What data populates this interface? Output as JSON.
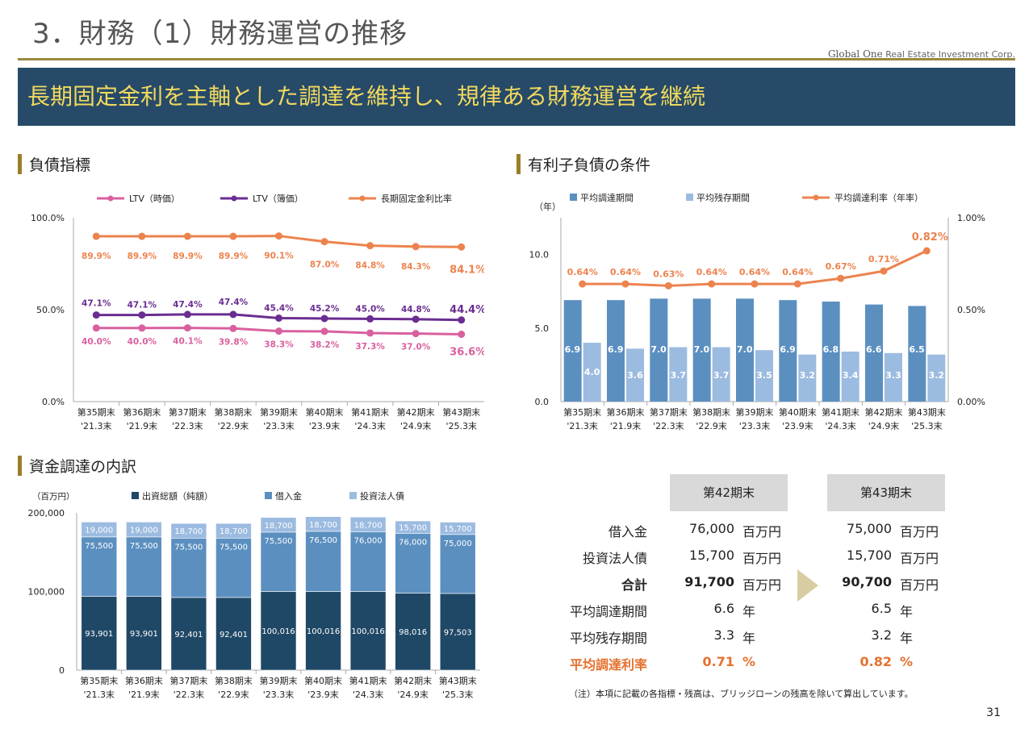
{
  "title": "3．財務（1）財務運営の推移",
  "logo": {
    "brand": "Global One",
    "tagline": "Real Estate Investment Corp."
  },
  "banner": "長期固定金利を主軸とした調達を維持し、規律ある財務運営を継続",
  "sections": {
    "debt": "負債指標",
    "conditions": "有利子負債の条件",
    "funding": "資金調達の内訳"
  },
  "periods": [
    "第35期末",
    "第36期末",
    "第37期末",
    "第38期末",
    "第39期末",
    "第40期末",
    "第41期末",
    "第42期末",
    "第43期末"
  ],
  "period_dates": [
    "'21.3末",
    "'21.9末",
    "'22.3末",
    "'22.9末",
    "'23.3末",
    "'23.9末",
    "'24.3末",
    "'24.9末",
    "'25.3末"
  ],
  "chart_data": [
    {
      "type": "line",
      "yticks": [
        "100.0%",
        "50.0%",
        "0.0%"
      ],
      "ylim": [
        0,
        100
      ],
      "series": [
        {
          "name": "LTV（時価）",
          "color": "#d9609f",
          "values": [
            40.0,
            40.0,
            40.1,
            39.8,
            38.3,
            38.2,
            37.3,
            37.0,
            36.6
          ],
          "labels": [
            "40.0%",
            "40.0%",
            "40.1%",
            "39.8%",
            "38.3%",
            "38.2%",
            "37.3%",
            "37.0%",
            "36.6%"
          ]
        },
        {
          "name": "LTV（簿価）",
          "color": "#6a2d91",
          "values": [
            47.1,
            47.1,
            47.4,
            47.4,
            45.4,
            45.2,
            45.0,
            44.8,
            44.4
          ],
          "labels": [
            "47.1%",
            "47.1%",
            "47.4%",
            "47.4%",
            "45.4%",
            "45.2%",
            "45.0%",
            "44.8%",
            "44.4%"
          ]
        },
        {
          "name": "長期固定金利比率",
          "color": "#ec834e",
          "values": [
            89.9,
            89.9,
            89.9,
            89.9,
            90.1,
            87.0,
            84.8,
            84.3,
            84.1
          ],
          "labels": [
            "89.9%",
            "89.9%",
            "89.9%",
            "89.9%",
            "90.1%",
            "87.0%",
            "84.8%",
            "84.3%",
            "84.1%"
          ]
        }
      ]
    },
    {
      "type": "bar",
      "unit_label": "（年）",
      "yticks_left": [
        "10.0",
        "5.0",
        "0.0"
      ],
      "yticks_right": [
        "1.00%",
        "0.50%",
        "0.00%"
      ],
      "ylim": [
        0,
        12.5
      ],
      "ylim_right": [
        0,
        1.0
      ],
      "series": [
        {
          "name": "平均調達期間",
          "color": "#5b8fc0",
          "values": [
            6.9,
            6.9,
            7.0,
            7.0,
            7.0,
            6.9,
            6.8,
            6.6,
            6.5
          ],
          "labels": [
            "6.9",
            "6.9",
            "7.0",
            "7.0",
            "7.0",
            "6.9",
            "6.8",
            "6.6",
            "6.5"
          ]
        },
        {
          "name": "平均残存期間",
          "color": "#9cbbe0",
          "values": [
            4.0,
            3.6,
            3.7,
            3.7,
            3.5,
            3.2,
            3.4,
            3.3,
            3.2
          ],
          "labels": [
            "4.0",
            "3.6",
            "3.7",
            "3.7",
            "3.5",
            "3.2",
            "3.4",
            "3.3",
            "3.2"
          ]
        },
        {
          "name": "平均調達利率（年率）",
          "color": "#ec834e",
          "values": [
            0.64,
            0.64,
            0.63,
            0.64,
            0.64,
            0.64,
            0.67,
            0.71,
            0.82
          ],
          "labels": [
            "0.64%",
            "0.64%",
            "0.63%",
            "0.64%",
            "0.64%",
            "0.64%",
            "0.67%",
            "0.71%",
            "0.82%"
          ]
        }
      ]
    },
    {
      "type": "bar",
      "stacked": true,
      "unit_label": "（百万円）",
      "yticks": [
        "200,000",
        "100,000",
        "0"
      ],
      "ylim": [
        0,
        200000
      ],
      "series": [
        {
          "name": "出資総額（純額）",
          "color": "#1f4866",
          "values": [
            93901,
            93901,
            92401,
            92401,
            100016,
            100016,
            100016,
            98016,
            97503
          ],
          "labels": [
            "93,901",
            "93,901",
            "92,401",
            "92,401",
            "100,016",
            "100,016",
            "100,016",
            "98,016",
            "97,503"
          ]
        },
        {
          "name": "借入金",
          "color": "#5b8fc0",
          "values": [
            75500,
            75500,
            75500,
            75500,
            75500,
            76500,
            76000,
            76000,
            75000
          ],
          "labels": [
            "75,500",
            "75,500",
            "75,500",
            "75,500",
            "75,500",
            "76,500",
            "76,000",
            "76,000",
            "75,000"
          ]
        },
        {
          "name": "投資法人債",
          "color": "#9cbbe0",
          "values": [
            19000,
            19000,
            18700,
            18700,
            18700,
            18700,
            18700,
            15700,
            15700
          ],
          "labels": [
            "19,000",
            "19,000",
            "18,700",
            "18,700",
            "18,700",
            "18,700",
            "18,700",
            "15,700",
            "15,700"
          ]
        }
      ]
    }
  ],
  "table": {
    "headers": [
      "第42期末",
      "第43期末"
    ],
    "rows": [
      {
        "label": "借入金",
        "v42": "76,000",
        "u42": "百万円",
        "v43": "75,000",
        "u43": "百万円"
      },
      {
        "label": "投資法人債",
        "v42": "15,700",
        "u42": "百万円",
        "v43": "15,700",
        "u43": "百万円"
      },
      {
        "label": "合計",
        "v42": "91,700",
        "u42": "百万円",
        "v43": "90,700",
        "u43": "百万円"
      },
      {
        "label": "平均調達期間",
        "v42": "6.6",
        "u42": "年",
        "v43": "6.5",
        "u43": "年"
      },
      {
        "label": "平均残存期間",
        "v42": "3.3",
        "u42": "年",
        "v43": "3.2",
        "u43": "年"
      },
      {
        "label": "平均調達利率",
        "v42": "0.71",
        "u42": "%",
        "v43": "0.82",
        "u43": "%"
      }
    ],
    "highlight_color": "#e5712f"
  },
  "note": "（注）本項に記載の各指標・残高は、ブリッジローンの残高を除いて算出しています。",
  "page_number": "31"
}
